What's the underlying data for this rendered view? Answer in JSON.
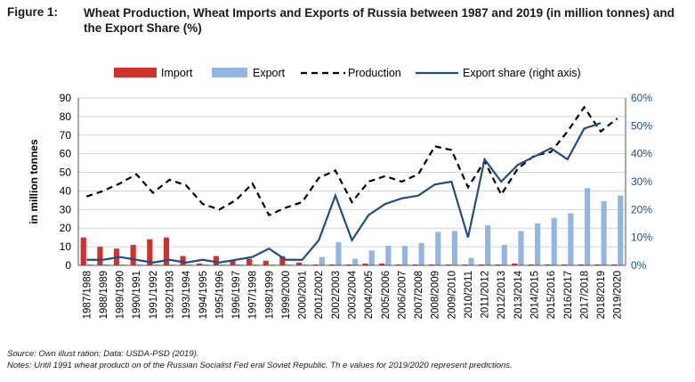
{
  "header": {
    "figure_label": "Figure 1:",
    "title": "Wheat Production, Wheat Imports and Exports of Russia between 1987 and 2019 (in million tonnes) and the Export Share (%)"
  },
  "footer": {
    "source": "Source: Own illust ration; Data: USDA-PSD (2019).",
    "notes": "Notes: Until 1991 wheat producti on of the Russian Socialist Fed eral Soviet Republic. Th e values for 2019/2020 represent predictions."
  },
  "chart_data": {
    "type": "bar",
    "ylabel": "in million tonnes",
    "ylim": [
      0,
      90
    ],
    "y_ticks": [
      "0",
      "10",
      "20",
      "30",
      "40",
      "50",
      "60",
      "70",
      "80",
      "90"
    ],
    "y2lim": [
      0,
      60
    ],
    "y2_ticks": [
      "0%",
      "10%",
      "20%",
      "30%",
      "40%",
      "50%",
      "60%"
    ],
    "grid": true,
    "legend_position": "top",
    "categories": [
      "1987/1988",
      "1988/1989",
      "1989/1990",
      "1990/1991",
      "1991/1992",
      "1992/1993",
      "1993/1994",
      "1994/1995",
      "1995/1996",
      "1996/1997",
      "1997/1998",
      "1998/1999",
      "1999/2000",
      "2000/2001",
      "2001/2002",
      "2002/2003",
      "2003/2004",
      "2004/2005",
      "2005/2006",
      "2006/2007",
      "2007/2008",
      "2008/2009",
      "2009/2010",
      "2010/2011",
      "2011/2012",
      "2012/2013",
      "2013/2014",
      "2014/2015",
      "2015/2016",
      "2016/2017",
      "2017/2018",
      "2018/2019",
      "2019/2020"
    ],
    "series": [
      {
        "name": "Import",
        "kind": "bar",
        "axis": "left",
        "color": "#d2302c",
        "values": [
          15,
          10,
          9,
          11,
          14,
          15,
          5,
          1,
          5,
          2.5,
          3.5,
          2.5,
          5,
          1.5,
          0.5,
          0.5,
          0.5,
          1,
          1,
          0.5,
          0.5,
          0.5,
          0.5,
          0.5,
          0.5,
          0.5,
          1,
          0.5,
          0.5,
          0.5,
          0.5,
          0.5,
          0.5
        ]
      },
      {
        "name": "Export",
        "kind": "bar",
        "axis": "left",
        "color": "#92b5e3",
        "values": [
          0.5,
          0.5,
          0.5,
          0.5,
          0.5,
          0.5,
          0.5,
          0.5,
          0.5,
          0.5,
          0.5,
          0.5,
          0.5,
          0.5,
          4.5,
          12.5,
          3.5,
          8,
          10.5,
          10.5,
          12,
          18,
          18.5,
          4,
          21.5,
          11,
          18.5,
          22.5,
          25.5,
          28,
          41.5,
          34.5,
          37.5
        ]
      },
      {
        "name": "Production",
        "kind": "line",
        "axis": "left",
        "color": "#000000",
        "values": [
          37,
          40,
          44,
          49,
          39,
          46,
          43,
          33,
          30,
          35,
          44,
          27,
          31,
          34,
          47,
          51,
          34,
          45,
          48,
          45,
          49,
          64,
          62,
          42,
          56,
          38,
          52,
          59,
          61,
          72,
          85,
          72,
          79
        ]
      },
      {
        "name": "Export share (right axis)",
        "kind": "line",
        "axis": "right",
        "color": "#1f4e84",
        "values": [
          2,
          2,
          3,
          2,
          1,
          2,
          1,
          2,
          1,
          2,
          3,
          6,
          2,
          2,
          9,
          25,
          9,
          18,
          22,
          24,
          25,
          29,
          30,
          10,
          38,
          30,
          36,
          39,
          42,
          38,
          49,
          51,
          null
        ]
      }
    ]
  }
}
